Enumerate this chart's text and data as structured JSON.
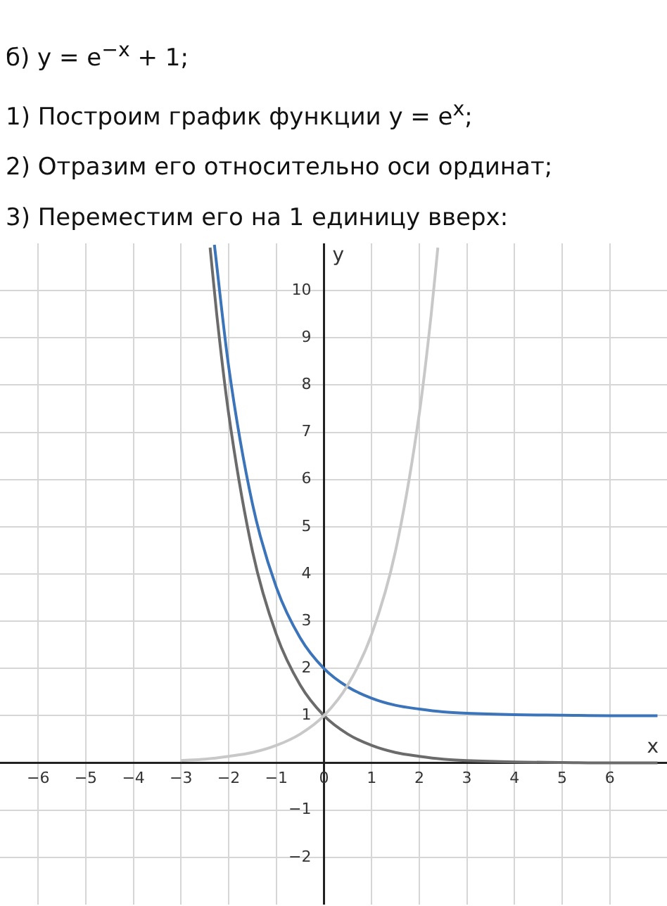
{
  "chart_data": {
    "type": "line",
    "title": "б) y = e$^{−x}$ + 1;",
    "annotations": [
      "1) Построим график функции y = e$^{x}$;",
      "2) Отразим его относительно оси ординат;",
      "3) Переместим его на 1 единицу вверх:"
    ],
    "xlabel": "x",
    "ylabel": "y",
    "series": [
      {
        "color": "#c8c8c8",
        "x": [
          -3,
          -2.5,
          -2,
          -1.5,
          -1,
          -0.5,
          0,
          0.5,
          1,
          1.5,
          2,
          2.25,
          2.39
        ],
        "values": [
          0.05,
          0.08,
          0.14,
          0.22,
          0.37,
          0.61,
          1,
          1.65,
          2.72,
          4.48,
          7.39,
          9.49,
          10.91
        ]
      },
      {
        "color": "#6b6b6b",
        "x": [
          -2.39,
          -2.25,
          -2,
          -1.5,
          -1,
          -0.5,
          0,
          0.5,
          1,
          1.5,
          2,
          2.5,
          3,
          4,
          5,
          6,
          7
        ],
        "values": [
          10.91,
          9.49,
          7.39,
          4.48,
          2.72,
          1.65,
          1,
          0.61,
          0.37,
          0.22,
          0.14,
          0.08,
          0.05,
          0.02,
          0.01,
          0,
          0
        ]
      },
      {
        "color": "#3b74b9",
        "x": [
          -2.3,
          -2,
          -1.5,
          -1,
          -0.5,
          0,
          0.5,
          1,
          1.5,
          2,
          2.5,
          3,
          4,
          5,
          6,
          7
        ],
        "values": [
          10.97,
          8.39,
          5.48,
          3.72,
          2.65,
          2,
          1.61,
          1.37,
          1.22,
          1.14,
          1.08,
          1.05,
          1.02,
          1.01,
          1,
          1
        ]
      }
    ],
    "xlim": [
      -6.8,
      7.2
    ],
    "ylim": [
      -3,
      11
    ],
    "xticks": [
      -6,
      -5,
      -4,
      -3,
      -2,
      -1,
      0,
      1,
      2,
      3,
      4,
      5,
      6
    ],
    "yticks": [
      -2,
      -1,
      {
        "value": 0,
        "label": null
      },
      1,
      2,
      3,
      4,
      5,
      6,
      7,
      8,
      9,
      10
    ],
    "grid": true,
    "legend": false,
    "marker": "none",
    "line_style": "solid"
  }
}
